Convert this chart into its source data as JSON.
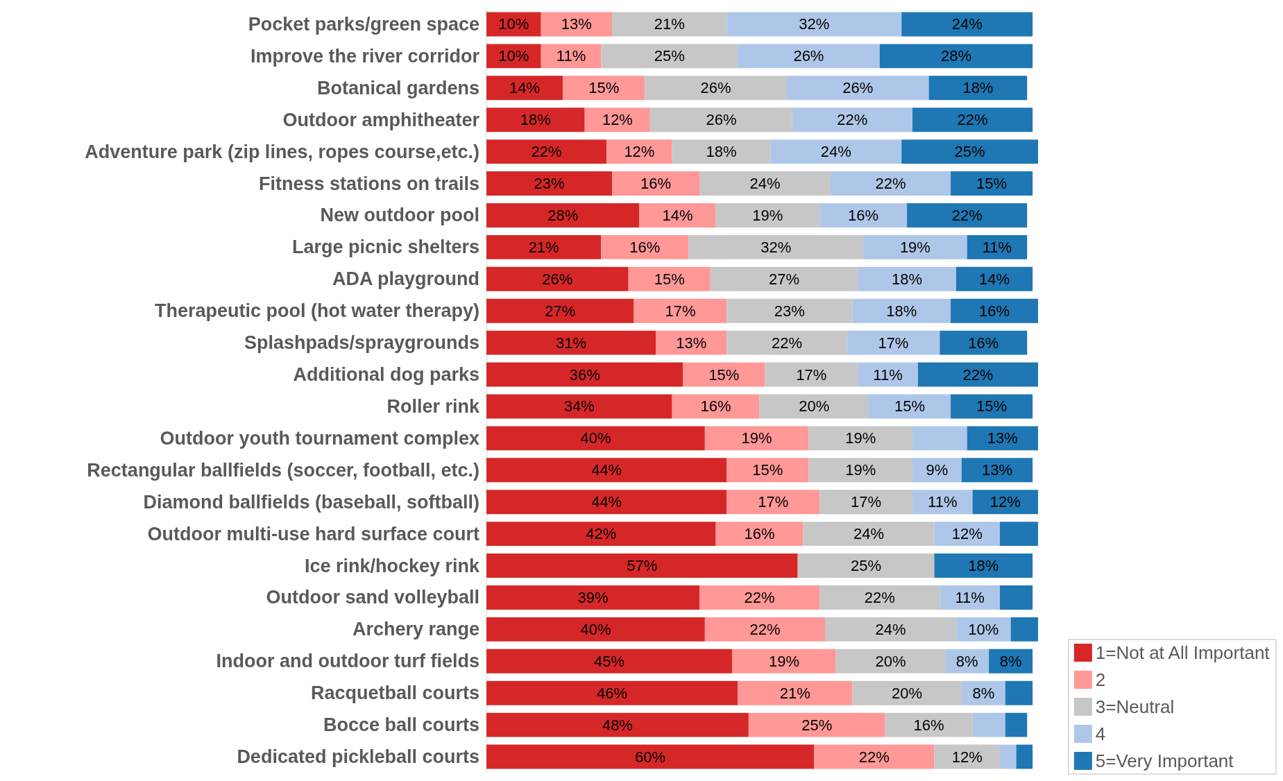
{
  "chart_data": {
    "type": "bar",
    "orientation": "horizontal",
    "stacked": true,
    "legend": "bottom right",
    "categories": [
      "Pocket parks/green space",
      "Improve the river corridor",
      "Botanical gardens",
      "Outdoor amphitheater",
      "Adventure park (zip lines, ropes course,etc.)",
      "Fitness stations on trails",
      "New outdoor pool",
      "Large picnic shelters",
      "ADA playground",
      "Therapeutic pool (hot water therapy)",
      "Splashpads/spraygrounds",
      "Additional dog parks",
      "Roller rink",
      "Outdoor youth tournament complex",
      "Rectangular ballfields (soccer, football, etc.)",
      "Diamond ballfields (baseball, softball)",
      "Outdoor multi-use hard surface court",
      "Ice rink/hockey rink",
      "Outdoor sand volleyball",
      "Archery range",
      "Indoor and outdoor turf fields",
      "Racquetball courts",
      "Bocce ball courts",
      "Dedicated pickleball courts"
    ],
    "series": [
      {
        "name": "1=Not at All Important",
        "color": "#d62728",
        "values": [
          10,
          10,
          14,
          18,
          22,
          23,
          28,
          21,
          26,
          27,
          31,
          36,
          34,
          40,
          44,
          44,
          42,
          57,
          39,
          40,
          45,
          46,
          48,
          60
        ],
        "value_labels": [
          "10%",
          "10%",
          "14%",
          "18%",
          "22%",
          "23%",
          "28%",
          "21%",
          "26%",
          "27%",
          "31%",
          "36%",
          "34%",
          "40%",
          "44%",
          "44%",
          "42%",
          "57%",
          "39%",
          "40%",
          "45%",
          "46%",
          "48%",
          "60%"
        ]
      },
      {
        "name": "2",
        "color": "#ff9896",
        "values": [
          13,
          11,
          15,
          12,
          12,
          16,
          14,
          16,
          15,
          17,
          13,
          15,
          16,
          19,
          15,
          17,
          16,
          null,
          22,
          22,
          19,
          21,
          25,
          22
        ],
        "value_labels": [
          "13%",
          "11%",
          "15%",
          "12%",
          "12%",
          "16%",
          "14%",
          "16%",
          "15%",
          "17%",
          "13%",
          "15%",
          "16%",
          "19%",
          "15%",
          "17%",
          "16%",
          null,
          "22%",
          "22%",
          "19%",
          "21%",
          "25%",
          "22%"
        ]
      },
      {
        "name": "3=Neutral",
        "color": "#c7c7c7",
        "values": [
          21,
          25,
          26,
          26,
          18,
          24,
          19,
          32,
          27,
          23,
          22,
          17,
          20,
          19,
          19,
          17,
          24,
          25,
          22,
          24,
          20,
          20,
          16,
          12
        ],
        "value_labels": [
          "21%",
          "25%",
          "26%",
          "26%",
          "18%",
          "24%",
          "19%",
          "32%",
          "27%",
          "23%",
          "22%",
          "17%",
          "20%",
          "19%",
          "19%",
          "17%",
          "24%",
          "25%",
          "22%",
          "24%",
          "20%",
          "20%",
          "16%",
          "12%"
        ]
      },
      {
        "name": "4",
        "color": "#aec7e8",
        "values": [
          32,
          26,
          26,
          22,
          24,
          22,
          16,
          19,
          18,
          18,
          17,
          11,
          15,
          10,
          9,
          11,
          12,
          null,
          11,
          10,
          8,
          8,
          6,
          3
        ],
        "value_labels": [
          "32%",
          "26%",
          "26%",
          "22%",
          "24%",
          "22%",
          "16%",
          "19%",
          "18%",
          "18%",
          "17%",
          "11%",
          "15%",
          null,
          "9%",
          "11%",
          "12%",
          null,
          "11%",
          "10%",
          "8%",
          "8%",
          null,
          null
        ]
      },
      {
        "name": "5=Very Important",
        "color": "#1f77b4",
        "values": [
          24,
          28,
          18,
          22,
          25,
          15,
          22,
          11,
          14,
          16,
          16,
          22,
          15,
          13,
          13,
          12,
          7,
          18,
          6,
          5,
          8,
          5,
          4,
          3
        ],
        "value_labels": [
          "24%",
          "28%",
          "18%",
          "22%",
          "25%",
          "15%",
          "22%",
          "11%",
          "14%",
          "16%",
          "16%",
          "22%",
          "15%",
          "13%",
          "13%",
          "12%",
          null,
          "18%",
          null,
          null,
          "8%",
          null,
          null,
          null
        ]
      }
    ]
  }
}
